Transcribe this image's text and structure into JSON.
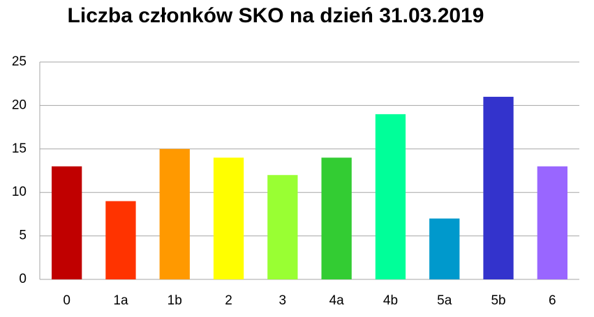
{
  "chart_data": {
    "type": "bar",
    "title": "Liczba członków SKO na dzień 31.03.2019",
    "categories": [
      "0",
      "1a",
      "1b",
      "2",
      "3",
      "4a",
      "4b",
      "5a",
      "5b",
      "6"
    ],
    "values": [
      13,
      9,
      15,
      14,
      12,
      14,
      19,
      7,
      21,
      13
    ],
    "colors": [
      "#c00000",
      "#ff3300",
      "#ff9900",
      "#ffff00",
      "#99ff33",
      "#33cc33",
      "#00ff99",
      "#0099cc",
      "#3333cc",
      "#9966ff"
    ],
    "ylim": [
      0,
      25
    ],
    "yticks": [
      0,
      5,
      10,
      15,
      20,
      25
    ],
    "grid": true
  }
}
